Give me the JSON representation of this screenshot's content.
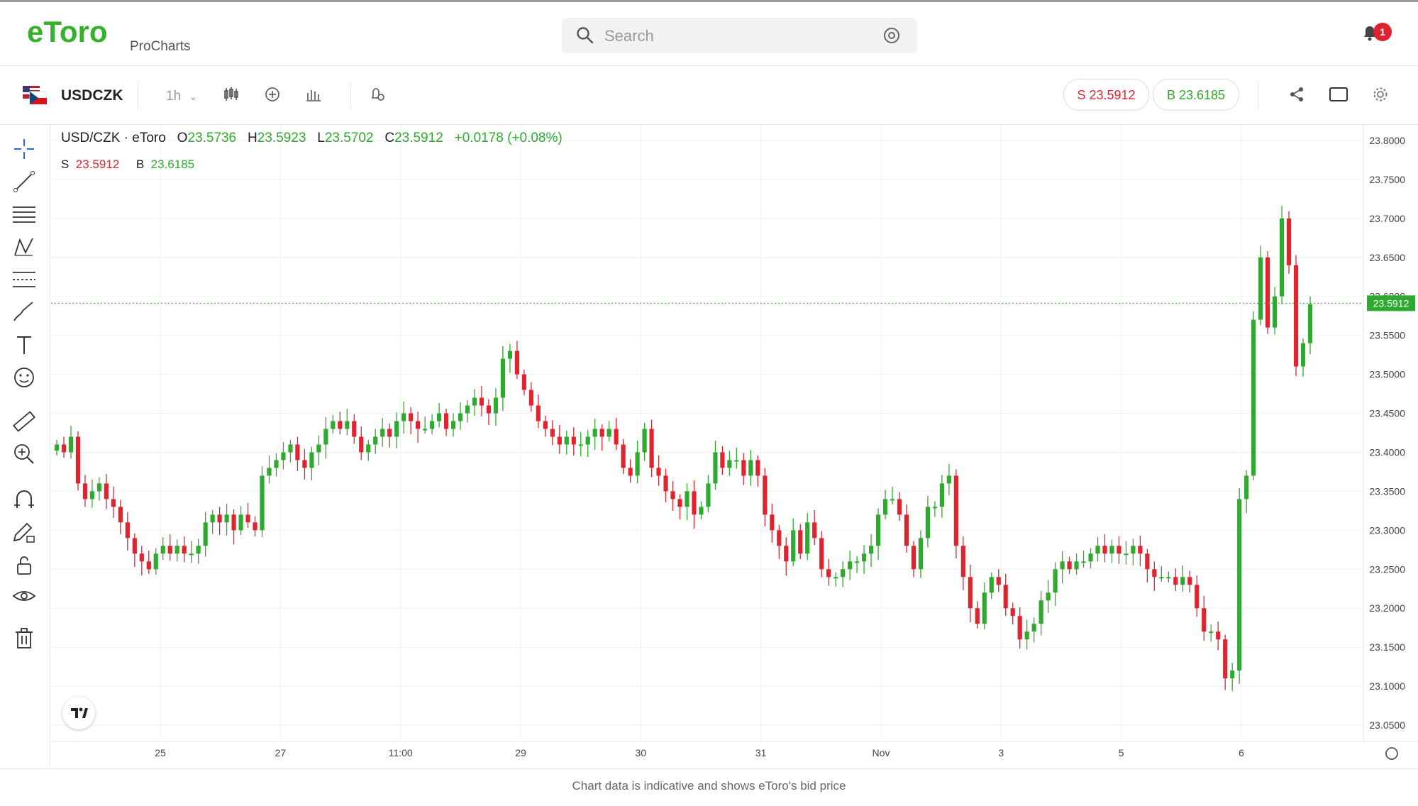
{
  "brand": {
    "logo_text": "eToro",
    "sub": "ProCharts"
  },
  "search": {
    "placeholder": "Search"
  },
  "notifications": {
    "count": "1"
  },
  "toolbar": {
    "symbol": "USDCZK",
    "timeframe": "1h",
    "sell": "S 23.5912",
    "buy": "B 23.6185"
  },
  "legend": {
    "pair": "USD/CZK · eToro",
    "o_label": "O",
    "o": "23.5736",
    "h_label": "H",
    "h": "23.5923",
    "l_label": "L",
    "l": "23.5702",
    "c_label": "C",
    "c": "23.5912",
    "change": "+0.0178 (+0.08%)",
    "s_label": "S",
    "s": "23.5912",
    "b_label": "B",
    "b": "23.6185"
  },
  "footer": {
    "note": "Chart data is indicative and shows eToro's bid price"
  },
  "colors": {
    "up": "#2eab2e",
    "down": "#e0242f",
    "brand": "#35b12b"
  },
  "icons": [
    "crosshair-icon",
    "trend-line-icon",
    "fib-icon",
    "pattern-icon",
    "projection-icon",
    "brush-icon",
    "text-icon",
    "emoji-icon",
    "ruler-icon",
    "zoom-in-icon",
    "magnet-icon",
    "lock-draw-icon",
    "unlock-icon",
    "eye-icon",
    "trash-icon"
  ],
  "chart_data": {
    "type": "candlestick",
    "title": "USD/CZK · eToro",
    "ylim": [
      23.03,
      23.82
    ],
    "y_ticks": [
      "23.8000",
      "23.7500",
      "23.7000",
      "23.6500",
      "23.6000",
      "23.5500",
      "23.5000",
      "23.4500",
      "23.4000",
      "23.3500",
      "23.3000",
      "23.2500",
      "23.2000",
      "23.1500",
      "23.1000",
      "23.0500"
    ],
    "x_ticks": [
      "25",
      "27",
      "11:00",
      "29",
      "30",
      "31",
      "Nov",
      "3",
      "5",
      "6"
    ],
    "last_price": "23.5912",
    "grid": true,
    "series": [
      {
        "name": "USD/CZK",
        "close": [
          23.41,
          23.4,
          23.42,
          23.36,
          23.34,
          23.35,
          23.36,
          23.34,
          23.33,
          23.31,
          23.29,
          23.27,
          23.26,
          23.25,
          23.27,
          23.28,
          23.27,
          23.28,
          23.27,
          23.27,
          23.28,
          23.31,
          23.32,
          23.31,
          23.32,
          23.3,
          23.32,
          23.31,
          23.3,
          23.37,
          23.38,
          23.39,
          23.4,
          23.41,
          23.39,
          23.38,
          23.4,
          23.41,
          23.43,
          23.44,
          23.43,
          23.44,
          23.42,
          23.4,
          23.41,
          23.42,
          23.43,
          23.42,
          23.44,
          23.45,
          23.44,
          23.43,
          23.43,
          23.44,
          23.45,
          23.43,
          23.44,
          23.45,
          23.46,
          23.47,
          23.46,
          23.45,
          23.47,
          23.52,
          23.53,
          23.5,
          23.48,
          23.46,
          23.44,
          23.43,
          23.42,
          23.41,
          23.42,
          23.41,
          23.41,
          23.42,
          23.43,
          23.42,
          23.43,
          23.41,
          23.38,
          23.37,
          23.4,
          23.43,
          23.38,
          23.37,
          23.35,
          23.34,
          23.33,
          23.35,
          23.32,
          23.33,
          23.36,
          23.4,
          23.38,
          23.39,
          23.39,
          23.37,
          23.39,
          23.37,
          23.32,
          23.3,
          23.28,
          23.26,
          23.3,
          23.27,
          23.31,
          23.29,
          23.25,
          23.24,
          23.24,
          23.25,
          23.26,
          23.26,
          23.27,
          23.28,
          23.32,
          23.34,
          23.34,
          23.32,
          23.28,
          23.25,
          23.29,
          23.33,
          23.33,
          23.36,
          23.37,
          23.28,
          23.24,
          23.2,
          23.18,
          23.22,
          23.24,
          23.23,
          23.2,
          23.19,
          23.16,
          23.17,
          23.18,
          23.21,
          23.22,
          23.25,
          23.26,
          23.25,
          23.26,
          23.26,
          23.27,
          23.28,
          23.27,
          23.28,
          23.27,
          23.27,
          23.28,
          23.27,
          23.25,
          23.24,
          23.24,
          23.24,
          23.23,
          23.24,
          23.23,
          23.2,
          23.17,
          23.17,
          23.16,
          23.11,
          23.12,
          23.34,
          23.37,
          23.57,
          23.65,
          23.56,
          23.6,
          23.7,
          23.64,
          23.51,
          23.54,
          23.59
        ]
      }
    ]
  }
}
